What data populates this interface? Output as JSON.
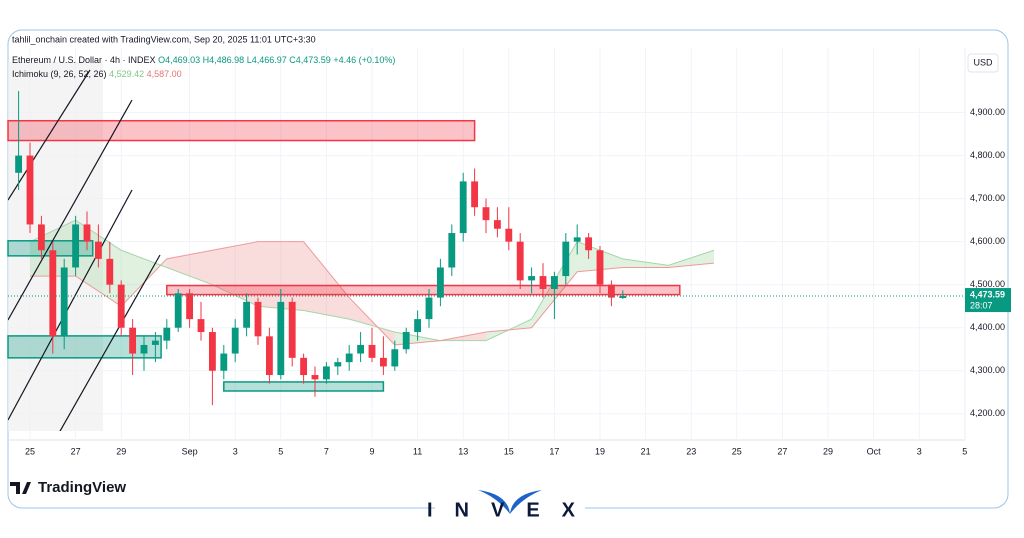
{
  "chart_data": {
    "type": "candlestick",
    "title": "tahlil_onchain created with TradingView.com, Sep 20, 2025 11:01 UTC+3:30",
    "legend": {
      "symbol": "Ethereum / U.S. Dollar · 4h · INDEX",
      "open": "O4,469.03",
      "high": "H4,486.98",
      "low": "L4,466.97",
      "close": "C4,473.59",
      "change": "+4.46 (+0.10%)",
      "indicator": "Ichimoku (9, 26, 52, 26)",
      "indicator_a": "4,529.42",
      "indicator_b": "4,587.00"
    },
    "currency": "USD",
    "last_price": {
      "value": 4473.59,
      "label": "4,473.59"
    },
    "countdown": "28:07",
    "up_color": "#089981",
    "down_color": "#f23645",
    "grid": true,
    "ylim": [
      4160,
      5050
    ],
    "yticks": [
      {
        "value": 4200,
        "label": "4,200.00"
      },
      {
        "value": 4300,
        "label": "4,300.00"
      },
      {
        "value": 4400,
        "label": "4,400.00"
      },
      {
        "value": 4500,
        "label": "4,500.00"
      },
      {
        "value": 4600,
        "label": "4,600.00"
      },
      {
        "value": 4700,
        "label": "4,700.00"
      },
      {
        "value": 4800,
        "label": "4,800.00"
      },
      {
        "value": 4900,
        "label": "4,900.00"
      }
    ],
    "xticks": [
      {
        "value": "08-25",
        "label": "25"
      },
      {
        "value": "08-27",
        "label": "27"
      },
      {
        "value": "08-29",
        "label": "29"
      },
      {
        "value": "09-01",
        "label": "Sep"
      },
      {
        "value": "09-03",
        "label": "3"
      },
      {
        "value": "09-05",
        "label": "5"
      },
      {
        "value": "09-07",
        "label": "7"
      },
      {
        "value": "09-09",
        "label": "9"
      },
      {
        "value": "09-11",
        "label": "11"
      },
      {
        "value": "09-13",
        "label": "13"
      },
      {
        "value": "09-15",
        "label": "15"
      },
      {
        "value": "09-17",
        "label": "17"
      },
      {
        "value": "09-19",
        "label": "19"
      },
      {
        "value": "09-21",
        "label": "21"
      },
      {
        "value": "09-23",
        "label": "23"
      },
      {
        "value": "09-25",
        "label": "25"
      },
      {
        "value": "09-27",
        "label": "27"
      },
      {
        "value": "09-29",
        "label": "29"
      },
      {
        "value": "10-01",
        "label": "Oct"
      },
      {
        "value": "10-03",
        "label": "3"
      },
      {
        "value": "10-05",
        "label": "5"
      }
    ],
    "candles": {
      "x": [
        "08-24 12",
        "08-25 00",
        "08-25 12",
        "08-26 00",
        "08-26 12",
        "08-27 00",
        "08-27 12",
        "08-28 00",
        "08-28 12",
        "08-29 00",
        "08-29 12",
        "08-30 00",
        "08-30 12",
        "08-31 00",
        "08-31 12",
        "09-01 00",
        "09-01 12",
        "09-02 00",
        "09-02 12",
        "09-03 00",
        "09-03 12",
        "09-04 00",
        "09-04 12",
        "09-05 00",
        "09-05 12",
        "09-06 00",
        "09-06 12",
        "09-07 00",
        "09-07 12",
        "09-08 00",
        "09-08 12",
        "09-09 00",
        "09-09 12",
        "09-10 00",
        "09-10 12",
        "09-11 00",
        "09-11 12",
        "09-12 00",
        "09-12 12",
        "09-13 00",
        "09-13 12",
        "09-14 00",
        "09-14 12",
        "09-15 00",
        "09-15 12",
        "09-16 00",
        "09-16 12",
        "09-17 00",
        "09-17 12",
        "09-18 00",
        "09-18 12",
        "09-19 00",
        "09-19 12",
        "09-20 00"
      ],
      "open": [
        4760,
        4800,
        4640,
        4580,
        4380,
        4540,
        4640,
        4600,
        4560,
        4500,
        4400,
        4340,
        4360,
        4370,
        4400,
        4480,
        4420,
        4390,
        4300,
        4340,
        4400,
        4460,
        4380,
        4290,
        4460,
        4330,
        4290,
        4280,
        4310,
        4320,
        4340,
        4360,
        4330,
        4310,
        4350,
        4390,
        4420,
        4470,
        4540,
        4620,
        4740,
        4680,
        4650,
        4630,
        4600,
        4510,
        4520,
        4490,
        4520,
        4600,
        4610,
        4580,
        4500,
        4469.03
      ],
      "high": [
        4950,
        4830,
        4660,
        4600,
        4560,
        4660,
        4670,
        4640,
        4600,
        4510,
        4420,
        4380,
        4390,
        4420,
        4490,
        4490,
        4460,
        4400,
        4360,
        4420,
        4480,
        4470,
        4400,
        4490,
        4470,
        4340,
        4310,
        4320,
        4330,
        4360,
        4390,
        4400,
        4380,
        4370,
        4400,
        4440,
        4490,
        4560,
        4640,
        4760,
        4770,
        4700,
        4680,
        4680,
        4620,
        4540,
        4550,
        4530,
        4620,
        4640,
        4620,
        4590,
        4510,
        4486.98
      ],
      "low": [
        4720,
        4620,
        4560,
        4340,
        4350,
        4520,
        4580,
        4540,
        4480,
        4380,
        4290,
        4300,
        4320,
        4350,
        4390,
        4400,
        4370,
        4220,
        4280,
        4320,
        4380,
        4360,
        4270,
        4280,
        4310,
        4270,
        4240,
        4270,
        4290,
        4300,
        4320,
        4320,
        4290,
        4300,
        4340,
        4370,
        4400,
        4450,
        4520,
        4600,
        4660,
        4620,
        4610,
        4580,
        4490,
        4480,
        4470,
        4420,
        4500,
        4570,
        4560,
        4480,
        4450,
        4466.97
      ],
      "close": [
        4800,
        4640,
        4580,
        4380,
        4540,
        4640,
        4600,
        4560,
        4500,
        4400,
        4340,
        4360,
        4370,
        4400,
        4480,
        4420,
        4390,
        4300,
        4340,
        4400,
        4460,
        4380,
        4290,
        4460,
        4330,
        4290,
        4280,
        4310,
        4320,
        4340,
        4360,
        4330,
        4310,
        4350,
        4390,
        4420,
        4470,
        4540,
        4620,
        4740,
        4680,
        4650,
        4630,
        4600,
        4510,
        4520,
        4490,
        4520,
        4600,
        4610,
        4580,
        4500,
        4470,
        4473.59
      ]
    },
    "cloud": {
      "x": [
        "08-25",
        "08-27",
        "08-29",
        "08-31",
        "09-02",
        "09-04",
        "09-06",
        "09-08",
        "09-10",
        "09-12",
        "09-14",
        "09-16",
        "09-18",
        "09-20",
        "09-22",
        "09-24"
      ],
      "span_a": [
        4600,
        4650,
        4580,
        4540,
        4500,
        4450,
        4440,
        4420,
        4390,
        4370,
        4370,
        4420,
        4600,
        4560,
        4545,
        4580
      ],
      "span_b": [
        4520,
        4520,
        4450,
        4560,
        4580,
        4600,
        4600,
        4470,
        4360,
        4370,
        4390,
        4400,
        4530,
        4540,
        4540,
        4550
      ],
      "up_color": "#a5d6a7",
      "down_color": "#ef9a9a"
    },
    "zones": [
      {
        "from": "08-24 00",
        "to": "09-13 12",
        "low": 4835,
        "high": 4881,
        "color": "#f23645"
      },
      {
        "from": "08-24 00",
        "to": "08-27 18",
        "low": 4567,
        "high": 4602,
        "color": "#089981"
      },
      {
        "from": "08-24 00",
        "to": "08-30 18",
        "low": 4330,
        "high": 4381,
        "color": "#089981"
      },
      {
        "from": "09-02 12",
        "to": "09-09 12",
        "low": 4253,
        "high": 4274,
        "color": "#089981"
      },
      {
        "from": "08-31 00",
        "to": "09-22 12",
        "low": 4477,
        "high": 4498,
        "color": "#f23645"
      }
    ]
  },
  "footer": {
    "platform": "TradingView",
    "brand": "INVEX"
  }
}
